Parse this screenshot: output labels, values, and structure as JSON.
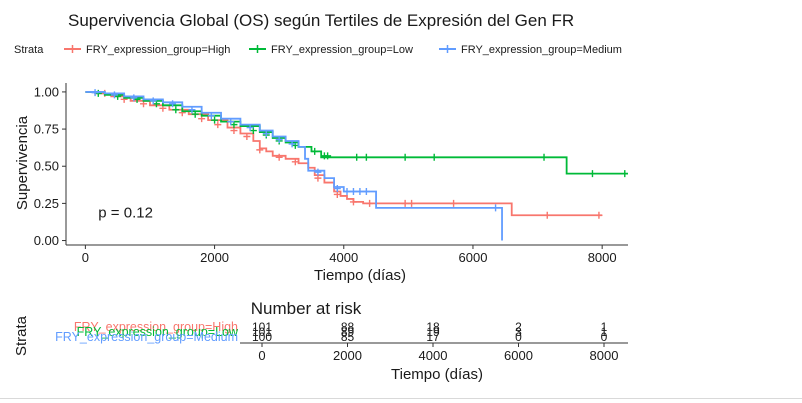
{
  "chart_data": [
    {
      "type": "line",
      "subtype": "kaplan-meier",
      "title": "Supervivencia Global (OS) según Tertiles de Expresión del Gen FR",
      "legend_title": "Strata",
      "legend_placement": "top",
      "xlabel": "Tiempo (días)",
      "ylabel": "Supervivencia",
      "xlim": [
        -300,
        8400
      ],
      "ylim": [
        -0.03,
        1.06
      ],
      "xticks": [
        0,
        2000,
        4000,
        6000,
        8000
      ],
      "yticks": [
        "0.00",
        "0.25",
        "0.50",
        "0.75",
        "1.00"
      ],
      "grid": false,
      "annotation": "p = 0.12",
      "annotation_pos": {
        "x": 200,
        "y": 0.19
      },
      "series": [
        {
          "name": "FRY_expression_group=High",
          "color": "#f8766d",
          "points": [
            [
              0,
              1.0
            ],
            [
              150,
              0.99
            ],
            [
              400,
              0.97
            ],
            [
              700,
              0.94
            ],
            [
              1000,
              0.91
            ],
            [
              1300,
              0.88
            ],
            [
              1600,
              0.85
            ],
            [
              1900,
              0.81
            ],
            [
              2200,
              0.76
            ],
            [
              2400,
              0.72
            ],
            [
              2600,
              0.67
            ],
            [
              2700,
              0.62
            ],
            [
              2800,
              0.6
            ],
            [
              2900,
              0.57
            ],
            [
              3100,
              0.55
            ],
            [
              3300,
              0.52
            ],
            [
              3450,
              0.49
            ],
            [
              3550,
              0.44
            ],
            [
              3700,
              0.39
            ],
            [
              3850,
              0.33
            ],
            [
              3950,
              0.3
            ],
            [
              4050,
              0.28
            ],
            [
              4150,
              0.26
            ],
            [
              4300,
              0.25
            ],
            [
              6600,
              0.25
            ],
            [
              6600,
              0.17
            ],
            [
              8000,
              0.17
            ]
          ],
          "censors": [
            [
              300,
              0.99
            ],
            [
              600,
              0.95
            ],
            [
              900,
              0.92
            ],
            [
              1200,
              0.89
            ],
            [
              1500,
              0.86
            ],
            [
              1800,
              0.82
            ],
            [
              2050,
              0.78
            ],
            [
              2300,
              0.74
            ],
            [
              2500,
              0.7
            ],
            [
              2700,
              0.61
            ],
            [
              3000,
              0.56
            ],
            [
              3250,
              0.53
            ],
            [
              3600,
              0.42
            ],
            [
              3900,
              0.31
            ],
            [
              4150,
              0.26
            ],
            [
              4400,
              0.25
            ],
            [
              4950,
              0.25
            ],
            [
              5050,
              0.25
            ],
            [
              5700,
              0.25
            ],
            [
              7150,
              0.17
            ],
            [
              7950,
              0.17
            ]
          ]
        },
        {
          "name": "FRY_expression_group=Low",
          "color": "#00ba38",
          "points": [
            [
              0,
              1.0
            ],
            [
              300,
              0.98
            ],
            [
              600,
              0.96
            ],
            [
              900,
              0.94
            ],
            [
              1200,
              0.91
            ],
            [
              1500,
              0.87
            ],
            [
              1800,
              0.84
            ],
            [
              2100,
              0.8
            ],
            [
              2400,
              0.77
            ],
            [
              2700,
              0.73
            ],
            [
              2900,
              0.69
            ],
            [
              3100,
              0.66
            ],
            [
              3300,
              0.63
            ],
            [
              3500,
              0.6
            ],
            [
              3650,
              0.6
            ],
            [
              3650,
              0.56
            ],
            [
              7450,
              0.56
            ],
            [
              7450,
              0.45
            ],
            [
              8400,
              0.45
            ]
          ],
          "censors": [
            [
              200,
              0.99
            ],
            [
              500,
              0.97
            ],
            [
              800,
              0.95
            ],
            [
              1100,
              0.92
            ],
            [
              1400,
              0.88
            ],
            [
              1700,
              0.85
            ],
            [
              2000,
              0.81
            ],
            [
              2300,
              0.78
            ],
            [
              2600,
              0.74
            ],
            [
              2800,
              0.71
            ],
            [
              3000,
              0.67
            ],
            [
              3250,
              0.64
            ],
            [
              3550,
              0.6
            ],
            [
              3700,
              0.57
            ],
            [
              3750,
              0.57
            ],
            [
              4200,
              0.56
            ],
            [
              4350,
              0.56
            ],
            [
              4950,
              0.56
            ],
            [
              5400,
              0.56
            ],
            [
              7100,
              0.56
            ],
            [
              7850,
              0.45
            ],
            [
              8350,
              0.45
            ]
          ]
        },
        {
          "name": "FRY_expression_group=Medium",
          "color": "#619cff",
          "points": [
            [
              0,
              1.0
            ],
            [
              300,
              0.99
            ],
            [
              600,
              0.97
            ],
            [
              900,
              0.95
            ],
            [
              1200,
              0.93
            ],
            [
              1500,
              0.9
            ],
            [
              1800,
              0.86
            ],
            [
              2100,
              0.82
            ],
            [
              2400,
              0.78
            ],
            [
              2700,
              0.74
            ],
            [
              2900,
              0.7
            ],
            [
              3100,
              0.67
            ],
            [
              3300,
              0.63
            ],
            [
              3400,
              0.55
            ],
            [
              3450,
              0.47
            ],
            [
              3700,
              0.42
            ],
            [
              3850,
              0.36
            ],
            [
              4000,
              0.33
            ],
            [
              4300,
              0.33
            ],
            [
              4500,
              0.22
            ],
            [
              6400,
              0.22
            ],
            [
              6450,
              0.0
            ]
          ],
          "censors": [
            [
              150,
              0.995
            ],
            [
              450,
              0.98
            ],
            [
              750,
              0.96
            ],
            [
              1050,
              0.94
            ],
            [
              1350,
              0.92
            ],
            [
              1650,
              0.88
            ],
            [
              1950,
              0.84
            ],
            [
              2250,
              0.8
            ],
            [
              2550,
              0.76
            ],
            [
              2800,
              0.72
            ],
            [
              3000,
              0.68
            ],
            [
              3200,
              0.65
            ],
            [
              3600,
              0.46
            ],
            [
              3900,
              0.35
            ],
            [
              4050,
              0.33
            ],
            [
              4150,
              0.33
            ],
            [
              4250,
              0.33
            ],
            [
              4350,
              0.33
            ],
            [
              6350,
              0.22
            ]
          ]
        }
      ]
    },
    {
      "type": "table",
      "title": "Number at risk",
      "ylabel": "Strata",
      "xlabel": "Tiempo (días)",
      "xticks": [
        0,
        2000,
        4000,
        6000,
        8000
      ],
      "rows": [
        {
          "label": "FRY_expression_group=High",
          "color": "#f8766d",
          "values": [
            "101",
            "88",
            "18",
            "2",
            "1"
          ]
        },
        {
          "label": "FRY_expression_group=Low",
          "color": "#00ba38",
          "values": [
            "101",
            "89",
            "19",
            "3",
            "1"
          ]
        },
        {
          "label": "FRY_expression_group=Medium",
          "color": "#619cff",
          "values": [
            "100",
            "85",
            "17",
            "0",
            "0"
          ]
        }
      ]
    }
  ]
}
